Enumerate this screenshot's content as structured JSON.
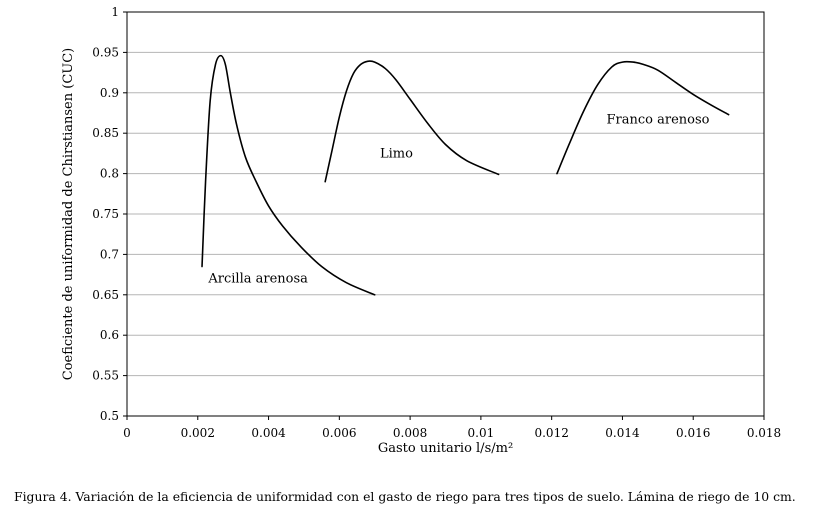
{
  "chart_data": {
    "type": "line",
    "xlabel": "Gasto unitario l/s/m²",
    "ylabel": "Coeficiente de uniformidad de Chirstiansen (CUC)",
    "xlim": [
      0,
      0.018
    ],
    "ylim": [
      0.5,
      1
    ],
    "x_ticks": [
      "0",
      "0.002",
      "0.004",
      "0.006",
      "0.008",
      "0.01",
      "0.012",
      "0.014",
      "0.016",
      "0.018"
    ],
    "y_ticks": [
      "0.5",
      "0.55",
      "0.6",
      "0.65",
      "0.7",
      "0.75",
      "0.8",
      "0.85",
      "0.9",
      "0.95",
      "1"
    ],
    "grid": "horizontal",
    "legend": "none",
    "line_color": "#000000",
    "series": [
      {
        "name": "Arcilla arenosa",
        "x": [
          0.00212,
          0.00222,
          0.00235,
          0.0025,
          0.00265,
          0.00278,
          0.00292,
          0.0031,
          0.00335,
          0.00365,
          0.004,
          0.0044,
          0.0049,
          0.0055,
          0.0062,
          0.007
        ],
        "y": [
          0.685,
          0.79,
          0.89,
          0.935,
          0.946,
          0.935,
          0.9,
          0.86,
          0.82,
          0.79,
          0.76,
          0.735,
          0.71,
          0.685,
          0.665,
          0.65
        ]
      },
      {
        "name": "Limo",
        "x": [
          0.0056,
          0.0058,
          0.006,
          0.0062,
          0.0064,
          0.0066,
          0.0068,
          0.007,
          0.0073,
          0.0076,
          0.008,
          0.0085,
          0.009,
          0.0096,
          0.0105
        ],
        "y": [
          0.79,
          0.83,
          0.87,
          0.902,
          0.924,
          0.935,
          0.939,
          0.938,
          0.93,
          0.916,
          0.892,
          0.862,
          0.836,
          0.816,
          0.799
        ]
      },
      {
        "name": "Franco arenoso",
        "x": [
          0.01215,
          0.0125,
          0.0129,
          0.0133,
          0.0137,
          0.014,
          0.0143,
          0.0146,
          0.015,
          0.0155,
          0.016,
          0.0165,
          0.017
        ],
        "y": [
          0.8,
          0.837,
          0.877,
          0.91,
          0.932,
          0.938,
          0.938,
          0.935,
          0.928,
          0.913,
          0.898,
          0.885,
          0.873
        ]
      }
    ]
  },
  "caption": "Figura 4. Variación de la eficiencia de uniformidad con el gasto de riego para tres tipos de suelo. Lámina de riego de 10 cm."
}
